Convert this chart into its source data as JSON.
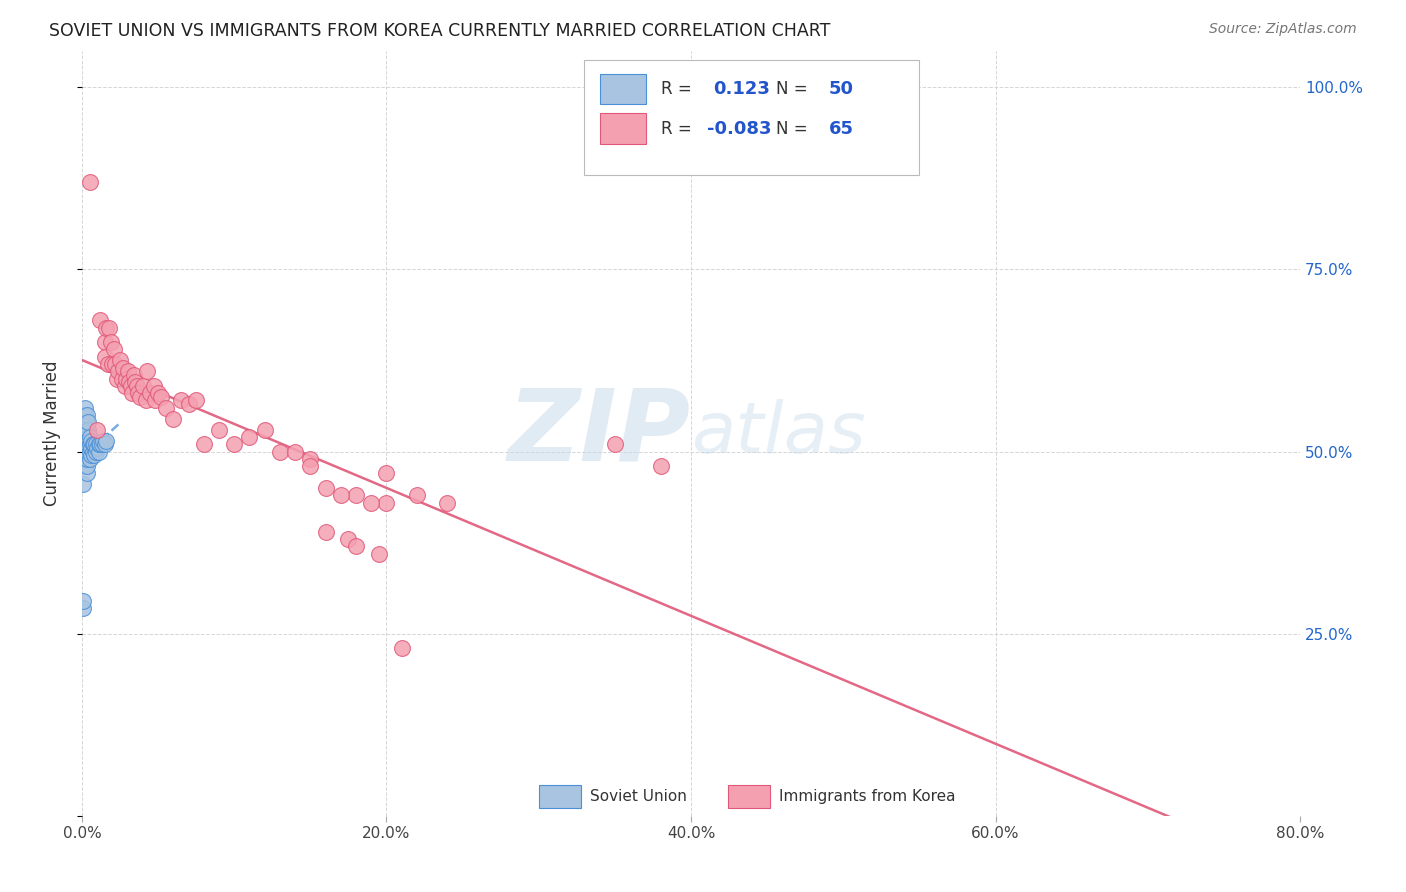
{
  "title": "SOVIET UNION VS IMMIGRANTS FROM KOREA CURRENTLY MARRIED CORRELATION CHART",
  "source": "Source: ZipAtlas.com",
  "ylabel": "Currently Married",
  "xmin": 0.0,
  "xmax": 0.8,
  "ymin": 0.0,
  "ymax": 1.05,
  "yticks": [
    0.0,
    0.25,
    0.5,
    0.75,
    1.0
  ],
  "ytick_labels": [
    "",
    "25.0%",
    "50.0%",
    "75.0%",
    "100.0%"
  ],
  "xtick_labels": [
    "0.0%",
    "20.0%",
    "40.0%",
    "60.0%",
    "80.0%"
  ],
  "xtick_positions": [
    0.0,
    0.2,
    0.4,
    0.6,
    0.8
  ],
  "r_soviet": 0.123,
  "n_soviet": 50,
  "r_korea": -0.083,
  "n_korea": 65,
  "soviet_color": "#a8c4e0",
  "korea_color": "#f4a0b0",
  "soviet_line_color": "#4a90d9",
  "korea_line_color": "#e05878",
  "background_color": "#ffffff",
  "soviet_x": [
    0.001,
    0.001,
    0.001,
    0.001,
    0.001,
    0.001,
    0.001,
    0.002,
    0.002,
    0.002,
    0.002,
    0.002,
    0.002,
    0.002,
    0.002,
    0.003,
    0.003,
    0.003,
    0.003,
    0.003,
    0.003,
    0.003,
    0.003,
    0.003,
    0.004,
    0.004,
    0.004,
    0.004,
    0.004,
    0.005,
    0.005,
    0.005,
    0.005,
    0.006,
    0.006,
    0.006,
    0.007,
    0.007,
    0.008,
    0.008,
    0.009,
    0.009,
    0.01,
    0.011,
    0.011,
    0.012,
    0.013,
    0.014,
    0.015,
    0.016
  ],
  "soviet_y": [
    0.285,
    0.295,
    0.455,
    0.5,
    0.52,
    0.53,
    0.54,
    0.48,
    0.49,
    0.5,
    0.51,
    0.52,
    0.535,
    0.55,
    0.56,
    0.47,
    0.48,
    0.49,
    0.5,
    0.51,
    0.52,
    0.53,
    0.54,
    0.55,
    0.5,
    0.51,
    0.52,
    0.53,
    0.54,
    0.49,
    0.5,
    0.51,
    0.52,
    0.495,
    0.505,
    0.515,
    0.5,
    0.51,
    0.495,
    0.51,
    0.5,
    0.51,
    0.505,
    0.5,
    0.51,
    0.51,
    0.51,
    0.515,
    0.51,
    0.515
  ],
  "korea_x": [
    0.005,
    0.01,
    0.012,
    0.015,
    0.015,
    0.016,
    0.017,
    0.018,
    0.019,
    0.02,
    0.021,
    0.022,
    0.023,
    0.024,
    0.025,
    0.026,
    0.027,
    0.028,
    0.029,
    0.03,
    0.031,
    0.032,
    0.033,
    0.034,
    0.035,
    0.036,
    0.037,
    0.038,
    0.04,
    0.042,
    0.043,
    0.045,
    0.047,
    0.048,
    0.05,
    0.052,
    0.055,
    0.06,
    0.065,
    0.07,
    0.075,
    0.08,
    0.09,
    0.1,
    0.11,
    0.12,
    0.13,
    0.14,
    0.15,
    0.16,
    0.18,
    0.2,
    0.22,
    0.24,
    0.15,
    0.17,
    0.19,
    0.2,
    0.35,
    0.38,
    0.16,
    0.175,
    0.18,
    0.195,
    0.21
  ],
  "korea_y": [
    0.87,
    0.53,
    0.68,
    0.65,
    0.63,
    0.67,
    0.62,
    0.67,
    0.65,
    0.62,
    0.64,
    0.62,
    0.6,
    0.61,
    0.625,
    0.6,
    0.615,
    0.59,
    0.6,
    0.61,
    0.595,
    0.59,
    0.58,
    0.605,
    0.595,
    0.59,
    0.58,
    0.575,
    0.59,
    0.57,
    0.61,
    0.58,
    0.59,
    0.57,
    0.58,
    0.575,
    0.56,
    0.545,
    0.57,
    0.565,
    0.57,
    0.51,
    0.53,
    0.51,
    0.52,
    0.53,
    0.5,
    0.5,
    0.49,
    0.45,
    0.44,
    0.43,
    0.44,
    0.43,
    0.48,
    0.44,
    0.43,
    0.47,
    0.51,
    0.48,
    0.39,
    0.38,
    0.37,
    0.36,
    0.23
  ]
}
